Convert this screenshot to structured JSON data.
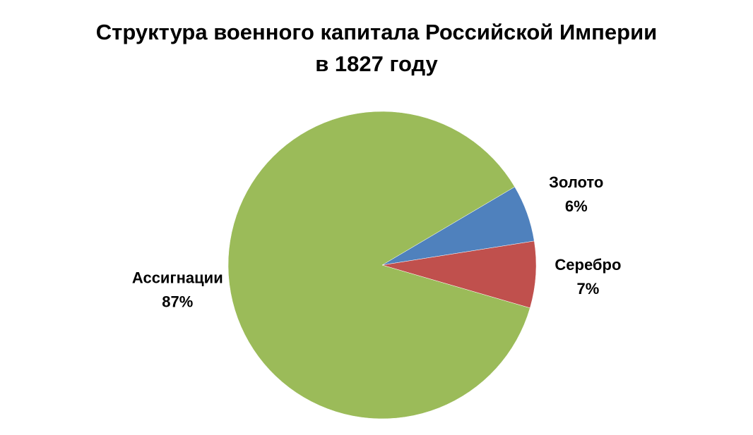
{
  "chart_data": {
    "type": "pie",
    "title": [
      "Структура военного капитала Российской Империи",
      "в 1827 году"
    ],
    "categories": [
      "Золото",
      "Серебро",
      "Ассигнации"
    ],
    "values": [
      6,
      7,
      87
    ],
    "value_labels": [
      "6%",
      "7%",
      "87%"
    ],
    "colors": [
      "#4f81bd",
      "#c0504d",
      "#9bbb59"
    ]
  }
}
